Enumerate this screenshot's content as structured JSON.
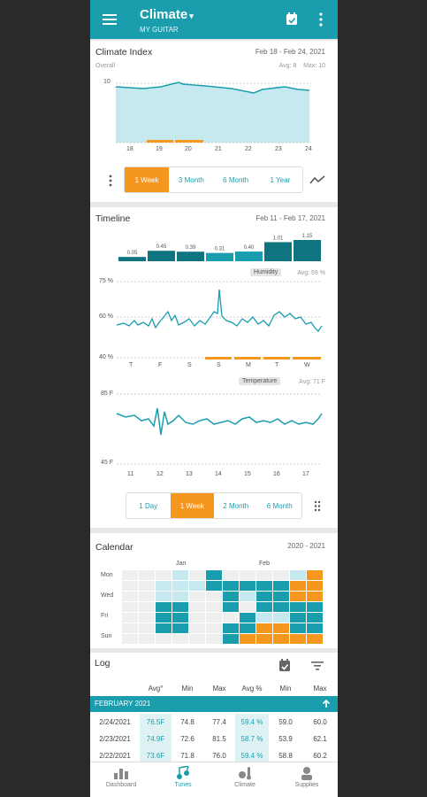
{
  "appbar": {
    "title": "Climate",
    "subtitle": "MY GUITAR"
  },
  "climate_index": {
    "title": "Climate Index",
    "range": "Feb 18 - Feb 24, 2021",
    "overall_label": "Overall",
    "avg_max": "Avg: 8    Max: 10",
    "ytick": "10",
    "xticks": [
      "18",
      "19",
      "20",
      "21",
      "22",
      "23",
      "24"
    ],
    "segments": [
      "1 Week",
      "3 Month",
      "6 Month",
      "1 Year"
    ],
    "selected": "1 Week"
  },
  "timeline": {
    "title": "Timeline",
    "range": "Feb 11 - Feb 17, 2021",
    "bar_values": [
      "0.05",
      "0.45",
      "0.39",
      "0.31",
      "0.40",
      "1.01",
      "1.15"
    ],
    "humidity_label": "Humidity",
    "humidity_avg": "Avg: 59 %",
    "humidity_yticks": [
      "75 %",
      "60 %",
      "40 %"
    ],
    "weekdays": [
      "T",
      "F",
      "S",
      "S",
      "M",
      "T",
      "W"
    ],
    "temperature_label": "Temperature",
    "temperature_avg": "Avg: 71 F",
    "temp_yticks": [
      "85 F",
      "45 F"
    ],
    "xticks": [
      "11",
      "12",
      "13",
      "14",
      "15",
      "16",
      "17"
    ],
    "segments": [
      "1 Day",
      "1 Week",
      "2 Month",
      "6 Month"
    ],
    "selected": "1 Week"
  },
  "calendar": {
    "title": "Calendar",
    "range": "2020 - 2021",
    "months": [
      "Jan",
      "Feb"
    ],
    "days": [
      "Mon",
      "Wed",
      "Fri",
      "Sun"
    ]
  },
  "log": {
    "title": "Log",
    "headers": [
      "Avg°",
      "Min",
      "Max",
      "Avg %",
      "Min",
      "Max"
    ],
    "month_label": "FEBRUARY 2021",
    "rows": [
      {
        "date": "2/24/2021",
        "avgt": "76.5F",
        "mint": "74.8",
        "maxt": "77.4",
        "avgh": "59.4 %",
        "minh": "59.0",
        "maxh": "60.0"
      },
      {
        "date": "2/23/2021",
        "avgt": "74.9F",
        "mint": "72.6",
        "maxt": "81.5",
        "avgh": "58.7 %",
        "minh": "53.9",
        "maxh": "62.1"
      },
      {
        "date": "2/22/2021",
        "avgt": "73.6F",
        "mint": "71.8",
        "maxt": "76.0",
        "avgh": "59.4 %",
        "minh": "58.8",
        "maxh": "60.2"
      }
    ]
  },
  "nav": {
    "items": [
      "Dashboard",
      "Tunes",
      "Climate",
      "Supplies"
    ],
    "active": "Tunes"
  },
  "colors": {
    "primary": "#1a9eae",
    "accent": "#f5961e",
    "dark_teal": "#0e7580"
  }
}
